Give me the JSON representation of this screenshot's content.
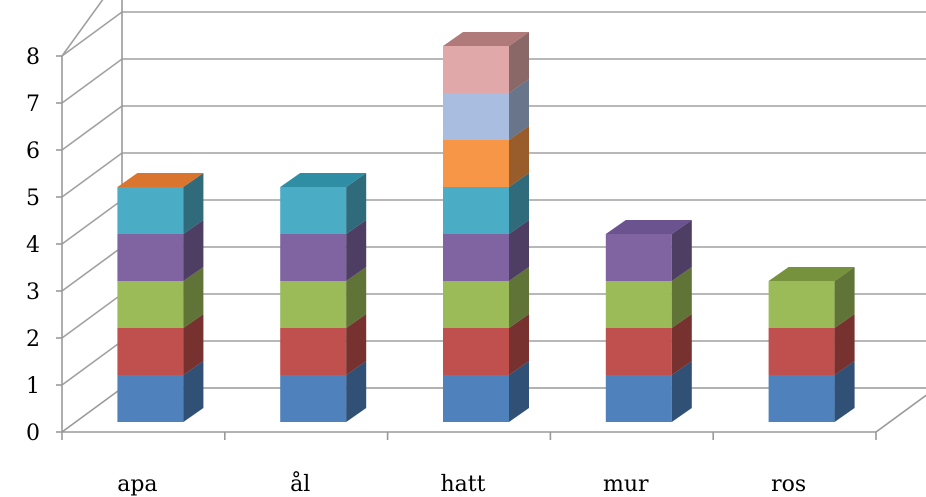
{
  "chart_data": {
    "type": "bar",
    "stacked": true,
    "three_d": true,
    "categories": [
      "apa",
      "ål",
      "hatt",
      "mur",
      "ros"
    ],
    "ylim": [
      0,
      8
    ],
    "yticks": [
      "0",
      "1",
      "2",
      "3",
      "4",
      "5",
      "6",
      "7",
      "8"
    ],
    "grid": true,
    "legend": "none",
    "series": [
      {
        "values": [
          1,
          1,
          1,
          1,
          1
        ],
        "color": "#4f81bd"
      },
      {
        "values": [
          1,
          1,
          1,
          1,
          1
        ],
        "color": "#c0504d"
      },
      {
        "values": [
          1,
          1,
          1,
          1,
          1
        ],
        "color": "#9bbb59"
      },
      {
        "values": [
          1,
          1,
          1,
          1,
          0
        ],
        "color": "#8064a2"
      },
      {
        "values": [
          1,
          1,
          1,
          0,
          0
        ],
        "color": "#4bacc6"
      },
      {
        "values": [
          0,
          0,
          1,
          0,
          0
        ],
        "color": "#f79646"
      },
      {
        "values": [
          0,
          0,
          1,
          0,
          0
        ],
        "color": "#a9bde0"
      },
      {
        "values": [
          0,
          0,
          1,
          0,
          0
        ],
        "color": "#e0a8a8"
      }
    ],
    "top_colors": [
      "#d9752e",
      "#2f8ea4",
      "#b07a7a",
      "#6b5390",
      "#76923c"
    ]
  }
}
